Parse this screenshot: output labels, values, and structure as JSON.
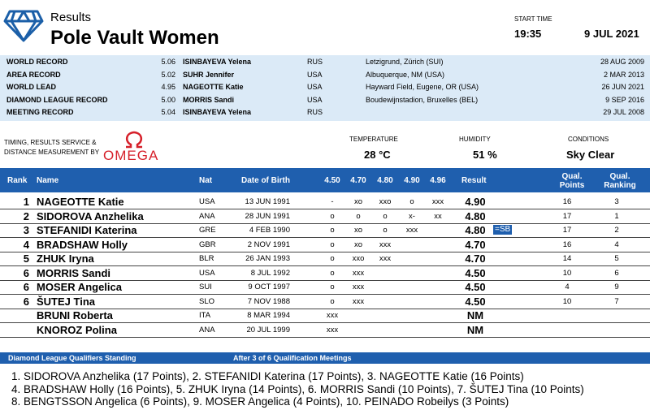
{
  "header": {
    "section": "Results",
    "title": "Pole Vault Women",
    "start_time_label": "START TIME",
    "start_time": "19:35",
    "date": "9 JUL 2021"
  },
  "records": [
    {
      "label": "WORLD RECORD",
      "value": "5.06",
      "name": "ISINBAYEVA Yelena",
      "nat": "RUS",
      "place": "Letzigrund, Zürich (SUI)",
      "date": "28 AUG 2009"
    },
    {
      "label": "AREA RECORD",
      "value": "5.02",
      "name": "SUHR Jennifer",
      "nat": "USA",
      "place": "Albuquerque, NM (USA)",
      "date": "2 MAR 2013"
    },
    {
      "label": "WORLD LEAD",
      "value": "4.95",
      "name": "NAGEOTTE Katie",
      "nat": "USA",
      "place": "Hayward Field, Eugene, OR (USA)",
      "date": "26 JUN 2021"
    },
    {
      "label": "DIAMOND LEAGUE RECORD",
      "value": "5.00",
      "name": "MORRIS Sandi",
      "nat": "USA",
      "place": "Boudewijnstadion, Bruxelles (BEL)",
      "date": "9 SEP 2016"
    },
    {
      "label": "MEETING RECORD",
      "value": "5.04",
      "name": "ISINBAYEVA Yelena",
      "nat": "RUS",
      "place": null,
      "date": "29 JUL 2008"
    }
  ],
  "timing": {
    "line1": "TIMING, RESULTS SERVICE &",
    "line2": "DISTANCE MEASUREMENT BY",
    "brand": "OMEGA"
  },
  "conditions": {
    "temperature_label": "TEMPERATURE",
    "temperature": "28 °C",
    "humidity_label": "HUMIDITY",
    "humidity": "51 %",
    "conditions_label": "CONDITIONS",
    "conditions": "Sky Clear"
  },
  "results": {
    "columns": {
      "rank": "Rank",
      "name": "Name",
      "nat": "Nat",
      "dob": "Date of Birth",
      "heights": [
        "4.50",
        "4.70",
        "4.80",
        "4.90",
        "4.96"
      ],
      "result": "Result",
      "points": "Qual. Points",
      "ranking": "Qual. Ranking"
    },
    "rows": [
      {
        "rank": 1,
        "name": "NAGEOTTE Katie",
        "nat": "USA",
        "dob": "13 JUN 1991",
        "attempts": [
          "-",
          "xo",
          "xxo",
          "o",
          "xxx"
        ],
        "result": "4.90",
        "note": null,
        "points": 16,
        "ranking": 3
      },
      {
        "rank": 2,
        "name": "SIDOROVA Anzhelika",
        "nat": "ANA",
        "dob": "28 JUN 1991",
        "attempts": [
          "o",
          "o",
          "o",
          "x-",
          "xx"
        ],
        "result": "4.80",
        "note": null,
        "points": 17,
        "ranking": 1
      },
      {
        "rank": 3,
        "name": "STEFANIDI Katerina",
        "nat": "GRE",
        "dob": "4 FEB 1990",
        "attempts": [
          "o",
          "xo",
          "o",
          "xxx",
          null
        ],
        "result": "4.80",
        "note": "=SB",
        "points": 17,
        "ranking": 2
      },
      {
        "rank": 4,
        "name": "BRADSHAW Holly",
        "nat": "GBR",
        "dob": "2 NOV 1991",
        "attempts": [
          "o",
          "xo",
          "xxx",
          null,
          null
        ],
        "result": "4.70",
        "note": null,
        "points": 16,
        "ranking": 4
      },
      {
        "rank": 5,
        "name": "ZHUK Iryna",
        "nat": "BLR",
        "dob": "26 JAN 1993",
        "attempts": [
          "o",
          "xxo",
          "xxx",
          null,
          null
        ],
        "result": "4.70",
        "note": null,
        "points": 14,
        "ranking": 5
      },
      {
        "rank": 6,
        "name": "MORRIS Sandi",
        "nat": "USA",
        "dob": "8 JUL 1992",
        "attempts": [
          "o",
          "xxx",
          null,
          null,
          null
        ],
        "result": "4.50",
        "note": null,
        "points": 10,
        "ranking": 6
      },
      {
        "rank": 6,
        "name": "MOSER Angelica",
        "nat": "SUI",
        "dob": "9 OCT 1997",
        "attempts": [
          "o",
          "xxx",
          null,
          null,
          null
        ],
        "result": "4.50",
        "note": null,
        "points": 4,
        "ranking": 9
      },
      {
        "rank": 6,
        "name": "ŠUTEJ Tina",
        "nat": "SLO",
        "dob": "7 NOV 1988",
        "attempts": [
          "o",
          "xxx",
          null,
          null,
          null
        ],
        "result": "4.50",
        "note": null,
        "points": 10,
        "ranking": 7
      },
      {
        "rank": null,
        "name": "BRUNI Roberta",
        "nat": "ITA",
        "dob": "8 MAR 1994",
        "attempts": [
          "xxx",
          null,
          null,
          null,
          null
        ],
        "result": "NM",
        "note": null,
        "points": null,
        "ranking": null
      },
      {
        "rank": null,
        "name": "KNOROZ Polina",
        "nat": "ANA",
        "dob": "20 JUL 1999",
        "attempts": [
          "xxx",
          null,
          null,
          null,
          null
        ],
        "result": "NM",
        "note": null,
        "points": null,
        "ranking": null
      }
    ]
  },
  "standings": {
    "title": "Diamond League Qualifiers Standing",
    "subtitle": "After 3 of 6 Qualification Meetings",
    "lines": [
      "1. SIDOROVA Anzhelika (17 Points), 2. STEFANIDI Katerina (17 Points), 3. NAGEOTTE Katie (16 Points)",
      "4. BRADSHAW Holly (16 Points), 5. ZHUK Iryna (14 Points), 6. MORRIS Sandi (10 Points), 7. ŠUTEJ Tina (10 Points)",
      "8. BENGTSSON Angelica (6 Points), 9. MOSER Angelica (4 Points), 10. PEINADO Robeilys (3 Points)"
    ]
  }
}
